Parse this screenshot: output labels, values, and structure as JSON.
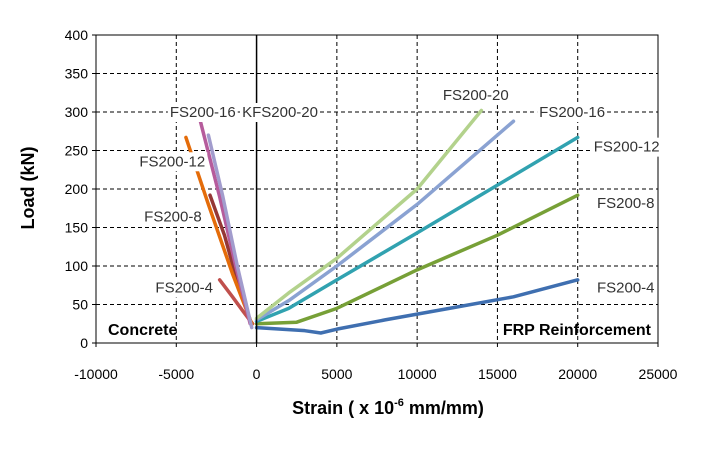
{
  "chart_data": {
    "type": "line",
    "xlabel_main": "Strain ( x 10",
    "xlabel_exp": "-6",
    "xlabel_tail": " mm/mm)",
    "ylabel": "Load (kN)",
    "xlim": [
      -10000,
      25000
    ],
    "ylim": [
      0,
      400
    ],
    "x_ticks": [
      "-10000",
      "-5000",
      "0",
      "5000",
      "10000",
      "15000",
      "20000",
      "25000"
    ],
    "y_ticks": [
      "0",
      "50",
      "100",
      "150",
      "200",
      "250",
      "300",
      "350",
      "400"
    ],
    "grid": true,
    "region_labels": {
      "left": "Concrete",
      "right": "FRP Reinforcement"
    },
    "series": [
      {
        "name": "FS200-4",
        "side": "concrete",
        "color": "#c0504d",
        "x": [
          -250,
          -800,
          -1500,
          -2300
        ],
        "y": [
          25,
          40,
          60,
          82
        ]
      },
      {
        "name": "FS200-8",
        "side": "concrete",
        "color": "#953735",
        "x": [
          -400,
          -1200,
          -2000,
          -2900
        ],
        "y": [
          30,
          80,
          140,
          192
        ]
      },
      {
        "name": "FS200-12",
        "side": "concrete",
        "color": "#e46c0a",
        "x": [
          -300,
          -1500,
          -3000,
          -4400
        ],
        "y": [
          25,
          90,
          180,
          267
        ]
      },
      {
        "name": "FS200-16",
        "side": "concrete",
        "color": "#b65c9c",
        "x": [
          -400,
          -1300,
          -2300,
          -3500
        ],
        "y": [
          25,
          100,
          190,
          288
        ]
      },
      {
        "name": "KFS200-20",
        "side": "concrete",
        "color": "#a29ccd",
        "x": [
          -300,
          -1200,
          -2100,
          -3000
        ],
        "y": [
          20,
          100,
          190,
          270
        ]
      },
      {
        "name": "FS200-4",
        "side": "frp",
        "color": "#3f6fb0",
        "x": [
          0,
          3000,
          4000,
          5000,
          8000,
          12000,
          16000,
          20000
        ],
        "y": [
          20,
          16,
          13,
          18,
          30,
          45,
          60,
          82
        ]
      },
      {
        "name": "FS200-8",
        "side": "frp",
        "color": "#77a037",
        "x": [
          0,
          2500,
          5000,
          10000,
          15000,
          20000
        ],
        "y": [
          25,
          27,
          45,
          95,
          140,
          192
        ]
      },
      {
        "name": "FS200-12",
        "side": "frp",
        "color": "#31a2b0",
        "x": [
          0,
          2000,
          5000,
          10000,
          15000,
          20000
        ],
        "y": [
          28,
          45,
          82,
          143,
          205,
          267
        ]
      },
      {
        "name": "FS200-16",
        "side": "frp",
        "color": "#8aa2d2",
        "x": [
          0,
          2000,
          5000,
          10000,
          16000
        ],
        "y": [
          30,
          55,
          100,
          180,
          288
        ]
      },
      {
        "name": "FS200-20",
        "side": "frp",
        "color": "#b3d28c",
        "x": [
          0,
          2000,
          5000,
          10000,
          14000
        ],
        "y": [
          32,
          65,
          110,
          200,
          302
        ]
      }
    ],
    "annotations": [
      {
        "text": "FS200-16",
        "x": -5400,
        "y": 300
      },
      {
        "text": "KFS200-20",
        "x": -900,
        "y": 300
      },
      {
        "text": "FS200-12",
        "x": -7300,
        "y": 236
      },
      {
        "text": "FS200-8",
        "x": -7000,
        "y": 164
      },
      {
        "text": "FS200-4",
        "x": -6300,
        "y": 72
      },
      {
        "text": "FS200-20",
        "x": 11600,
        "y": 322
      },
      {
        "text": "FS200-16",
        "x": 17600,
        "y": 300
      },
      {
        "text": "FS200-12",
        "x": 21000,
        "y": 255
      },
      {
        "text": "FS200-8",
        "x": 21200,
        "y": 182
      },
      {
        "text": "FS200-4",
        "x": 21200,
        "y": 72
      }
    ]
  }
}
